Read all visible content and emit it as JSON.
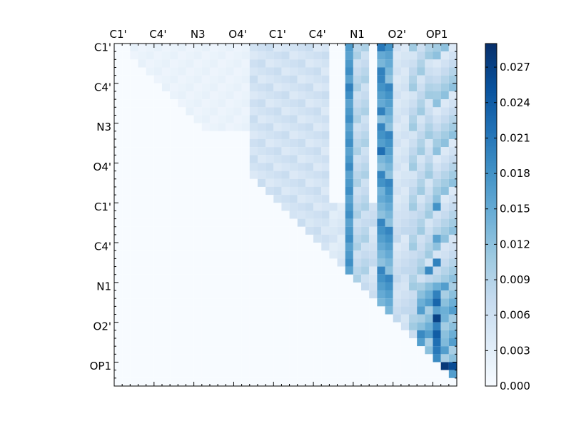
{
  "chart_data": {
    "type": "heatmap",
    "title": "",
    "xlabel": "",
    "ylabel": "",
    "size": 43,
    "x_ticklabels": [
      "C1'",
      "C4'",
      "N3",
      "O4'",
      "C1'",
      "C4'",
      "N1",
      "O2'",
      "OP1"
    ],
    "y_ticklabels": [
      "C1'",
      "C4'",
      "N3",
      "O4'",
      "C1'",
      "C4'",
      "N1",
      "O2'",
      "OP1"
    ],
    "tick_index": [
      0,
      5,
      10,
      15,
      20,
      25,
      30,
      35,
      40
    ],
    "colorbar": {
      "min": 0.0,
      "max": 0.029,
      "ticks": [
        "0.000",
        "0.003",
        "0.006",
        "0.009",
        "0.012",
        "0.015",
        "0.018",
        "0.021",
        "0.024",
        "0.027"
      ],
      "tick_values": [
        0,
        0.003,
        0.006,
        0.009,
        0.012,
        0.015,
        0.018,
        0.021,
        0.024,
        0.027
      ]
    },
    "colormap": [
      "#f7fbff",
      "#deebf7",
      "#c6dbef",
      "#9ecae1",
      "#6baed6",
      "#4292c6",
      "#2171b5",
      "#08519c",
      "#08306b"
    ],
    "upper_triangle_only": true,
    "note_structure": "strong columns near index 29 and 33-34; strong lower-right block near columns 40-42",
    "highlight_cells": [
      [
        40,
        41,
        0.028
      ],
      [
        40,
        42,
        0.026
      ],
      [
        34,
        40,
        0.027
      ],
      [
        36,
        40,
        0.024
      ],
      [
        37,
        40,
        0.022
      ],
      [
        38,
        40,
        0.021
      ],
      [
        39,
        40,
        0.019
      ],
      [
        31,
        40,
        0.02
      ],
      [
        33,
        40,
        0.016
      ],
      [
        34,
        41,
        0.014
      ],
      [
        37,
        41,
        0.013
      ],
      [
        0,
        29,
        0.017
      ],
      [
        0,
        33,
        0.021
      ],
      [
        1,
        34,
        0.016
      ],
      [
        3,
        33,
        0.02
      ],
      [
        5,
        29,
        0.02
      ],
      [
        8,
        33,
        0.02
      ],
      [
        13,
        33,
        0.022
      ],
      [
        15,
        29,
        0.019
      ],
      [
        18,
        33,
        0.014
      ],
      [
        20,
        40,
        0.018
      ],
      [
        24,
        40,
        0.016
      ],
      [
        27,
        40,
        0.02
      ],
      [
        28,
        39,
        0.019
      ],
      [
        32,
        40,
        0.023
      ],
      [
        35,
        40,
        0.02
      ],
      [
        36,
        38,
        0.019
      ]
    ]
  }
}
